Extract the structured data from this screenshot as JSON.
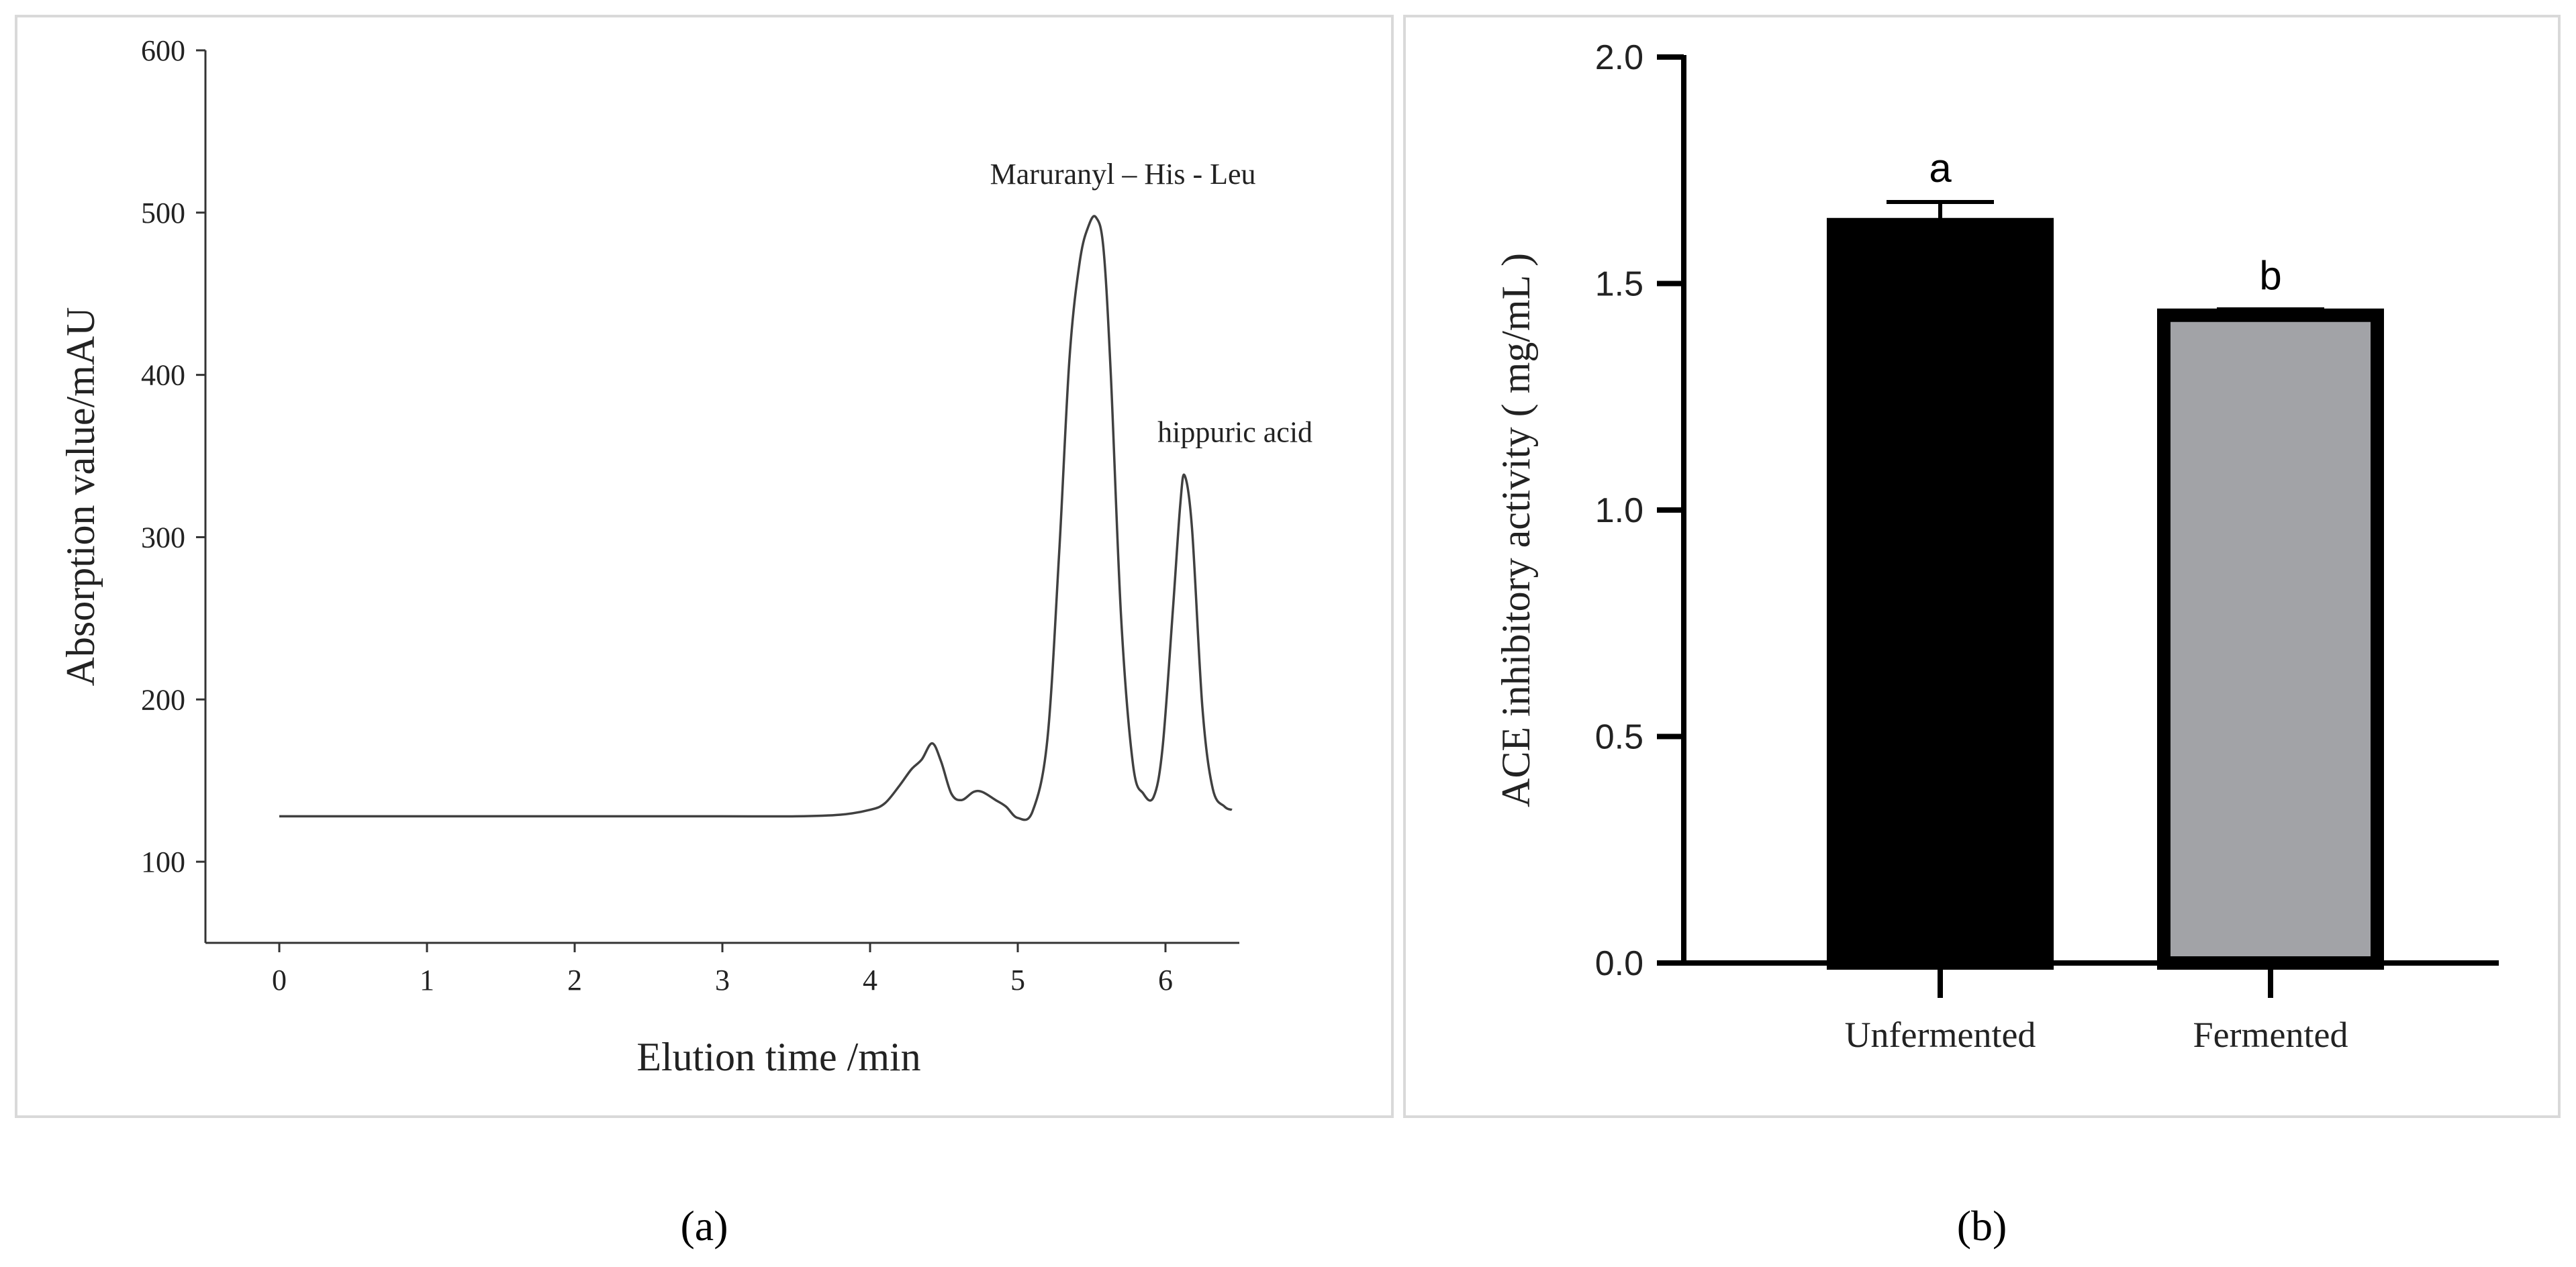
{
  "chart_data": [
    {
      "panel_label": "a",
      "type": "line",
      "xlabel": "Elution time /min",
      "ylabel": "Absorption value/mAU",
      "xlim": [
        -0.5,
        6.5
      ],
      "ylim": [
        50,
        600
      ],
      "x_ticks": [
        0,
        1,
        2,
        3,
        4,
        5,
        6
      ],
      "y_ticks": [
        100,
        200,
        300,
        400,
        500,
        600
      ],
      "grid": false,
      "series": [
        {
          "x": [
            0,
            1,
            2,
            3,
            3.5,
            3.8,
            4.0,
            4.1,
            4.2,
            4.28,
            4.35,
            4.42,
            4.48,
            4.55,
            4.62,
            4.7,
            4.76,
            4.85,
            4.92,
            5.0,
            5.1,
            5.2,
            5.28,
            5.35,
            5.42,
            5.48,
            5.53,
            5.58,
            5.63,
            5.7,
            5.78,
            5.85,
            5.92,
            5.98,
            6.05,
            6.1,
            6.13,
            6.18,
            6.25,
            6.32,
            6.4,
            6.45
          ],
          "y": [
            128,
            128,
            128,
            128,
            128,
            129,
            132,
            136,
            147,
            157,
            163,
            173,
            162,
            142,
            138,
            143,
            143,
            138,
            134,
            127,
            131,
            175,
            290,
            410,
            470,
            492,
            497,
            478,
            400,
            250,
            160,
            142,
            140,
            170,
            255,
            320,
            338,
            305,
            195,
            145,
            134,
            132
          ]
        }
      ],
      "annotations": [
        {
          "text": "Maruranyl  – His - Leu",
          "x": 5.53,
          "y": 497
        },
        {
          "text": "hippuric acid",
          "x": 6.13,
          "y": 338
        }
      ]
    },
    {
      "panel_label": "b",
      "type": "bar",
      "categories": [
        "Unfermented",
        "Fermented"
      ],
      "ylabel": "ACE inhibitory activity ( mg/mL )",
      "ylim": [
        0,
        2.0
      ],
      "y_ticks": [
        "0.0",
        "0.5",
        "1.0",
        "1.5",
        "2.0"
      ],
      "grid": false,
      "values": [
        1.63,
        1.43
      ],
      "errors": [
        0.05,
        0.013
      ],
      "bar_colors": [
        "#000000",
        "#a2a3a7"
      ],
      "significance_letters": [
        "a",
        "b"
      ]
    }
  ],
  "captions": [
    "(a)",
    "(b)"
  ],
  "colors": {
    "frame": "#d9d9d9",
    "bar_unfermented": "#000000",
    "bar_fermented": "#a2a3a7",
    "trace": "#404040"
  }
}
